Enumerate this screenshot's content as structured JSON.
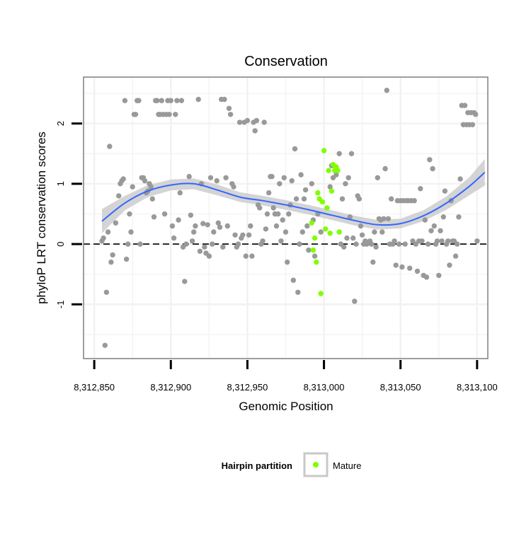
{
  "chart_data": {
    "type": "scatter",
    "title": "Conservation",
    "xlabel": "Genomic Position",
    "ylabel": "phyloP LRT conservation scores",
    "xlim": [
      8312843,
      8313107
    ],
    "ylim": [
      -1.9,
      2.77
    ],
    "x_ticks": [
      8312850,
      8312900,
      8312950,
      8313000,
      8313050,
      8313100
    ],
    "x_tick_labels": [
      "8,312,850",
      "8,312,900",
      "8,312,950",
      "8,313,000",
      "8,313,050",
      "8,313,100"
    ],
    "y_ticks": [
      -1,
      0,
      1,
      2
    ],
    "y_tick_labels": [
      "-1",
      "0",
      "1",
      "2"
    ],
    "reference_line": {
      "y": 0,
      "style": "dashed"
    },
    "grid": true,
    "colors": {
      "other": "#999999",
      "mature": "#7fff00",
      "smooth": "#3366ff",
      "band": "#cccccc",
      "panel_border": "#7f7f7f",
      "grid": "#f2f2f2"
    },
    "legend": {
      "title": "Hairpin partition",
      "position": "bottom",
      "items": [
        {
          "label": "Mature",
          "color": "#7fff00"
        }
      ]
    },
    "smooth": {
      "x": [
        8312855,
        8312870,
        8312885,
        8312900,
        8312915,
        8312930,
        8312945,
        8312960,
        8312975,
        8312990,
        8313005,
        8313020,
        8313035,
        8313050,
        8313065,
        8313080,
        8313095,
        8313105
      ],
      "y": [
        0.38,
        0.68,
        0.88,
        0.98,
        1.0,
        0.9,
        0.78,
        0.72,
        0.65,
        0.57,
        0.48,
        0.39,
        0.32,
        0.34,
        0.47,
        0.68,
        0.96,
        1.19
      ],
      "se": [
        0.2,
        0.12,
        0.1,
        0.09,
        0.09,
        0.09,
        0.08,
        0.08,
        0.08,
        0.08,
        0.08,
        0.08,
        0.08,
        0.08,
        0.09,
        0.11,
        0.15,
        0.22
      ]
    },
    "series": [
      {
        "name": "Other",
        "color": "#999999",
        "points": [
          [
            8312855,
            0.05
          ],
          [
            8312856,
            0.1
          ],
          [
            8312857,
            -1.68
          ],
          [
            8312858,
            -0.8
          ],
          [
            8312859,
            0.2
          ],
          [
            8312860,
            1.62
          ],
          [
            8312861,
            -0.3
          ],
          [
            8312862,
            -0.18
          ],
          [
            8312864,
            0.35
          ],
          [
            8312866,
            0.8
          ],
          [
            8312867,
            1.0
          ],
          [
            8312868,
            1.05
          ],
          [
            8312869,
            1.08
          ],
          [
            8312870,
            2.38
          ],
          [
            8312871,
            -0.25
          ],
          [
            8312872,
            0.0
          ],
          [
            8312873,
            0.5
          ],
          [
            8312874,
            0.2
          ],
          [
            8312875,
            0.95
          ],
          [
            8312876,
            2.15
          ],
          [
            8312877,
            2.15
          ],
          [
            8312878,
            2.38
          ],
          [
            8312879,
            2.38
          ],
          [
            8312880,
            0.0
          ],
          [
            8312881,
            1.1
          ],
          [
            8312882,
            1.1
          ],
          [
            8312883,
            1.05
          ],
          [
            8312884,
            0.85
          ],
          [
            8312885,
            0.88
          ],
          [
            8312886,
            1.0
          ],
          [
            8312887,
            0.95
          ],
          [
            8312888,
            0.75
          ],
          [
            8312889,
            0.45
          ],
          [
            8312890,
            2.38
          ],
          [
            8312891,
            2.38
          ],
          [
            8312892,
            2.15
          ],
          [
            8312893,
            2.15
          ],
          [
            8312894,
            2.38
          ],
          [
            8312895,
            2.15
          ],
          [
            8312896,
            0.5
          ],
          [
            8312897,
            2.15
          ],
          [
            8312898,
            2.38
          ],
          [
            8312899,
            2.15
          ],
          [
            8312900,
            2.38
          ],
          [
            8312901,
            0.3
          ],
          [
            8312902,
            0.1
          ],
          [
            8312903,
            2.15
          ],
          [
            8312904,
            2.38
          ],
          [
            8312905,
            0.4
          ],
          [
            8312906,
            0.85
          ],
          [
            8312907,
            2.38
          ],
          [
            8312908,
            -0.05
          ],
          [
            8312909,
            -0.62
          ],
          [
            8312910,
            0.0
          ],
          [
            8312912,
            1.12
          ],
          [
            8312913,
            0.48
          ],
          [
            8312914,
            0.05
          ],
          [
            8312915,
            0.2
          ],
          [
            8312916,
            0.3
          ],
          [
            8312918,
            2.4
          ],
          [
            8312919,
            -0.12
          ],
          [
            8312920,
            1.0
          ],
          [
            8312921,
            0.34
          ],
          [
            8312922,
            -0.05
          ],
          [
            8312923,
            -0.15
          ],
          [
            8312924,
            0.32
          ],
          [
            8312925,
            -0.2
          ],
          [
            8312926,
            1.1
          ],
          [
            8312927,
            0.0
          ],
          [
            8312928,
            0.2
          ],
          [
            8312930,
            1.05
          ],
          [
            8312931,
            0.35
          ],
          [
            8312932,
            0.28
          ],
          [
            8312933,
            2.4
          ],
          [
            8312934,
            -0.05
          ],
          [
            8312935,
            2.4
          ],
          [
            8312936,
            1.1
          ],
          [
            8312937,
            0.3
          ],
          [
            8312938,
            2.25
          ],
          [
            8312939,
            2.15
          ],
          [
            8312940,
            1.0
          ],
          [
            8312941,
            0.95
          ],
          [
            8312942,
            0.15
          ],
          [
            8312943,
            -0.05
          ],
          [
            8312944,
            0.0
          ],
          [
            8312945,
            2.02
          ],
          [
            8312946,
            0.1
          ],
          [
            8312947,
            0.15
          ],
          [
            8312948,
            2.02
          ],
          [
            8312949,
            -0.2
          ],
          [
            8312950,
            2.05
          ],
          [
            8312951,
            0.15
          ],
          [
            8312952,
            0.3
          ],
          [
            8312953,
            -0.2
          ],
          [
            8312954,
            2.02
          ],
          [
            8312955,
            1.88
          ],
          [
            8312956,
            2.05
          ],
          [
            8312957,
            0.65
          ],
          [
            8312958,
            0.6
          ],
          [
            8312959,
            0.0
          ],
          [
            8312960,
            0.05
          ],
          [
            8312961,
            2.02
          ],
          [
            8312962,
            0.25
          ],
          [
            8312963,
            0.5
          ],
          [
            8312964,
            0.85
          ],
          [
            8312965,
            1.12
          ],
          [
            8312966,
            1.12
          ],
          [
            8312967,
            0.6
          ],
          [
            8312968,
            0.5
          ],
          [
            8312969,
            0.3
          ],
          [
            8312970,
            0.5
          ],
          [
            8312971,
            1.0
          ],
          [
            8312972,
            0.05
          ],
          [
            8312973,
            0.4
          ],
          [
            8312974,
            1.1
          ],
          [
            8312975,
            0.2
          ],
          [
            8312976,
            -0.3
          ],
          [
            8312977,
            0.5
          ],
          [
            8312978,
            0.65
          ],
          [
            8312979,
            1.05
          ],
          [
            8312980,
            -0.6
          ],
          [
            8312981,
            1.58
          ],
          [
            8312982,
            0.75
          ],
          [
            8312983,
            -0.8
          ],
          [
            8312984,
            0.0
          ],
          [
            8312985,
            1.15
          ],
          [
            8312986,
            0.2
          ],
          [
            8312987,
            0.75
          ],
          [
            8312988,
            0.9
          ],
          [
            8312989,
            0.3
          ],
          [
            8312990,
            -0.1
          ],
          [
            8312992,
            1.0
          ],
          [
            8312993,
            0.4
          ],
          [
            8312994,
            -0.2
          ],
          [
            8312996,
            0.5
          ],
          [
            8312998,
            0.2
          ],
          [
            8313004,
            0.95
          ],
          [
            8313005,
            1.3
          ],
          [
            8313006,
            1.1
          ],
          [
            8313008,
            1.15
          ],
          [
            8313010,
            1.5
          ],
          [
            8313011,
            0.0
          ],
          [
            8313012,
            0.75
          ],
          [
            8313013,
            -0.05
          ],
          [
            8313014,
            1.0
          ],
          [
            8313015,
            0.1
          ],
          [
            8313016,
            1.1
          ],
          [
            8313017,
            0.45
          ],
          [
            8313018,
            1.5
          ],
          [
            8313019,
            0.1
          ],
          [
            8313020,
            -0.95
          ],
          [
            8313021,
            0.0
          ],
          [
            8313022,
            0.8
          ],
          [
            8313023,
            0.75
          ],
          [
            8313024,
            0.3
          ],
          [
            8313025,
            0.15
          ],
          [
            8313026,
            0.0
          ],
          [
            8313027,
            0.05
          ],
          [
            8313028,
            0.0
          ],
          [
            8313030,
            0.05
          ],
          [
            8313031,
            0.0
          ],
          [
            8313032,
            -0.3
          ],
          [
            8313033,
            0.2
          ],
          [
            8313034,
            -0.05
          ],
          [
            8313035,
            1.1
          ],
          [
            8313036,
            0.42
          ],
          [
            8313037,
            0.4
          ],
          [
            8313038,
            0.2
          ],
          [
            8313039,
            0.42
          ],
          [
            8313040,
            1.25
          ],
          [
            8313041,
            2.55
          ],
          [
            8313042,
            0.42
          ],
          [
            8313043,
            0.0
          ],
          [
            8313044,
            0.75
          ],
          [
            8313045,
            0.0
          ],
          [
            8313046,
            0.05
          ],
          [
            8313047,
            -0.35
          ],
          [
            8313048,
            0.72
          ],
          [
            8313049,
            0.0
          ],
          [
            8313050,
            0.72
          ],
          [
            8313051,
            -0.38
          ],
          [
            8313052,
            0.72
          ],
          [
            8313053,
            0.0
          ],
          [
            8313054,
            0.72
          ],
          [
            8313055,
            0.72
          ],
          [
            8313056,
            -0.4
          ],
          [
            8313057,
            0.72
          ],
          [
            8313058,
            0.05
          ],
          [
            8313059,
            0.72
          ],
          [
            8313060,
            0.0
          ],
          [
            8313061,
            -0.45
          ],
          [
            8313062,
            0.05
          ],
          [
            8313063,
            0.92
          ],
          [
            8313064,
            0.05
          ],
          [
            8313065,
            -0.52
          ],
          [
            8313066,
            0.4
          ],
          [
            8313067,
            -0.55
          ],
          [
            8313068,
            0.0
          ],
          [
            8313069,
            1.4
          ],
          [
            8313070,
            0.22
          ],
          [
            8313071,
            1.25
          ],
          [
            8313072,
            0.3
          ],
          [
            8313073,
            0.0
          ],
          [
            8313074,
            0.05
          ],
          [
            8313075,
            -0.52
          ],
          [
            8313076,
            0.22
          ],
          [
            8313077,
            0.05
          ],
          [
            8313078,
            0.45
          ],
          [
            8313079,
            0.88
          ],
          [
            8313080,
            0.0
          ],
          [
            8313081,
            0.05
          ],
          [
            8313082,
            -0.35
          ],
          [
            8313083,
            0.72
          ],
          [
            8313084,
            0.05
          ],
          [
            8313085,
            0.05
          ],
          [
            8313086,
            -0.2
          ],
          [
            8313087,
            0.0
          ],
          [
            8313088,
            0.45
          ],
          [
            8313089,
            1.08
          ],
          [
            8313090,
            2.3
          ],
          [
            8313091,
            1.98
          ],
          [
            8313092,
            2.3
          ],
          [
            8313093,
            1.98
          ],
          [
            8313094,
            2.18
          ],
          [
            8313095,
            1.98
          ],
          [
            8313096,
            2.18
          ],
          [
            8313097,
            1.98
          ],
          [
            8313098,
            2.18
          ],
          [
            8313099,
            2.15
          ],
          [
            8313100,
            0.05
          ]
        ]
      },
      {
        "name": "Mature",
        "color": "#7fff00",
        "points": [
          [
            8312992,
            0.35
          ],
          [
            8312993,
            -0.1
          ],
          [
            8312994,
            0.1
          ],
          [
            8312995,
            -0.3
          ],
          [
            8312996,
            0.85
          ],
          [
            8312997,
            0.75
          ],
          [
            8312998,
            -0.82
          ],
          [
            8312999,
            0.7
          ],
          [
            8313000,
            1.55
          ],
          [
            8313001,
            0.25
          ],
          [
            8313002,
            0.6
          ],
          [
            8313003,
            1.22
          ],
          [
            8313004,
            0.18
          ],
          [
            8313005,
            0.88
          ],
          [
            8313006,
            1.32
          ],
          [
            8313007,
            1.22
          ],
          [
            8313008,
            1.28
          ],
          [
            8313009,
            1.22
          ],
          [
            8313010,
            0.2
          ]
        ]
      }
    ]
  }
}
